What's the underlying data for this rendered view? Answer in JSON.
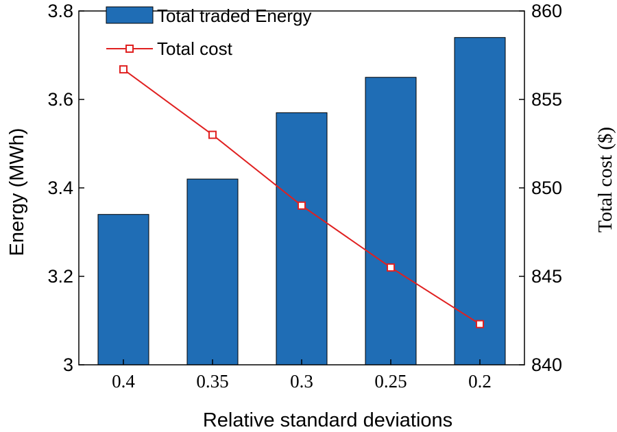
{
  "chart_data": {
    "type": "bar",
    "title": "",
    "categories": [
      "0.4",
      "0.35",
      "0.3",
      "0.25",
      "0.2"
    ],
    "xlabel": "Relative standard deviations",
    "ylabel": "Energy (MWh)",
    "y2label": "Total cost ($)",
    "ylim": [
      3,
      3.8
    ],
    "y2lim": [
      840,
      860
    ],
    "yticks": [
      "3",
      "3.2",
      "3.4",
      "3.6",
      "3.8"
    ],
    "y2ticks": [
      "840",
      "845",
      "850",
      "855",
      "860"
    ],
    "grid": false,
    "legend_position": "top-left",
    "series": [
      {
        "name": "Total traded Energy",
        "type": "bar",
        "axis": "left",
        "color": "#1f6db5",
        "values": [
          3.34,
          3.42,
          3.57,
          3.65,
          3.74
        ]
      },
      {
        "name": "Total cost",
        "type": "line",
        "axis": "right",
        "color": "#e02020",
        "marker": "square",
        "values": [
          856.7,
          853.0,
          849.0,
          845.5,
          842.3
        ]
      }
    ],
    "legend": [
      "Total traded Energy",
      "Total cost"
    ]
  }
}
